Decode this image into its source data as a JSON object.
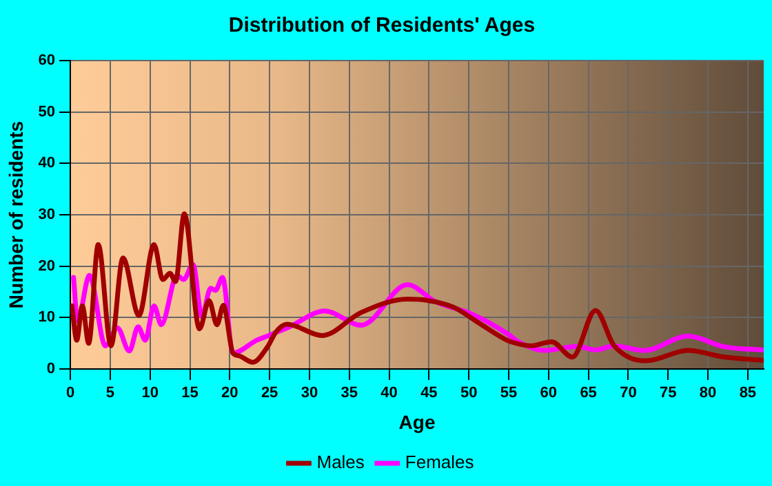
{
  "chart_data": {
    "type": "line",
    "title": "Distribution of Residents' Ages",
    "xlabel": "Age",
    "ylabel": "Number of residents",
    "xlim": [
      0,
      87
    ],
    "xticks": [
      0,
      5,
      10,
      15,
      20,
      25,
      30,
      35,
      40,
      45,
      50,
      55,
      60,
      65,
      70,
      75,
      80,
      85
    ],
    "ylim": [
      0,
      60
    ],
    "yticks": [
      0,
      10,
      20,
      30,
      40,
      50,
      60
    ],
    "grid": true,
    "legend": "bottom",
    "marker": "none",
    "line_style": "solid",
    "series": [
      {
        "name": "Males",
        "color": "#a00000",
        "x": [
          0.2,
          0.8,
          1.5,
          2.3,
          3.5,
          5.1,
          6.6,
          8.6,
          10.5,
          11.6,
          12.5,
          13.2,
          14.3,
          16.2,
          17.4,
          18.4,
          19.2,
          20.4,
          21.1,
          22.9,
          24.7,
          25.8,
          27.2,
          31.6,
          36.5,
          42.3,
          44.6,
          48.1,
          51.5,
          54.9,
          56.2,
          57.8,
          60.4,
          63.0,
          65.9,
          68.2,
          72.3,
          77.5,
          82.1,
          86.8
        ],
        "values": [
          12.3,
          5.6,
          12.3,
          5,
          24.2,
          4.5,
          21.6,
          10.4,
          24.2,
          17.4,
          18.6,
          17,
          30.2,
          7.8,
          13.3,
          8.6,
          12.4,
          3.1,
          2.6,
          1.3,
          4.2,
          7.2,
          8.7,
          6.5,
          11,
          13.6,
          13.4,
          12,
          8.7,
          5.5,
          4.9,
          4.5,
          5.3,
          2.3,
          11.4,
          4.6,
          1.6,
          3.6,
          2.3,
          1.7
        ]
      },
      {
        "name": "Females",
        "color": "#ff00ff",
        "x": [
          0.4,
          0.9,
          2.4,
          4.4,
          5.9,
          7.4,
          8.5,
          9.4,
          10.5,
          11.4,
          13.4,
          14.2,
          15.4,
          16.5,
          17.6,
          18.2,
          19.1,
          20.4,
          23.4,
          24.7,
          27.5,
          31.9,
          36.5,
          42.3,
          45.8,
          50.5,
          54.9,
          56.2,
          59.5,
          63.6,
          65.9,
          68.2,
          72,
          77.5,
          82.1,
          86.8
        ],
        "values": [
          17.8,
          9.3,
          18.2,
          4.5,
          8,
          3.5,
          8.2,
          5.6,
          12.3,
          8.6,
          18.2,
          17.4,
          20.3,
          10.2,
          15.7,
          15.3,
          17.8,
          3.1,
          5.6,
          6.4,
          8.2,
          11.3,
          8.5,
          16.4,
          13.1,
          10.6,
          6.8,
          5.3,
          3.6,
          4.4,
          3.7,
          4.5,
          3.6,
          6.4,
          4.3,
          3.7
        ]
      }
    ]
  }
}
